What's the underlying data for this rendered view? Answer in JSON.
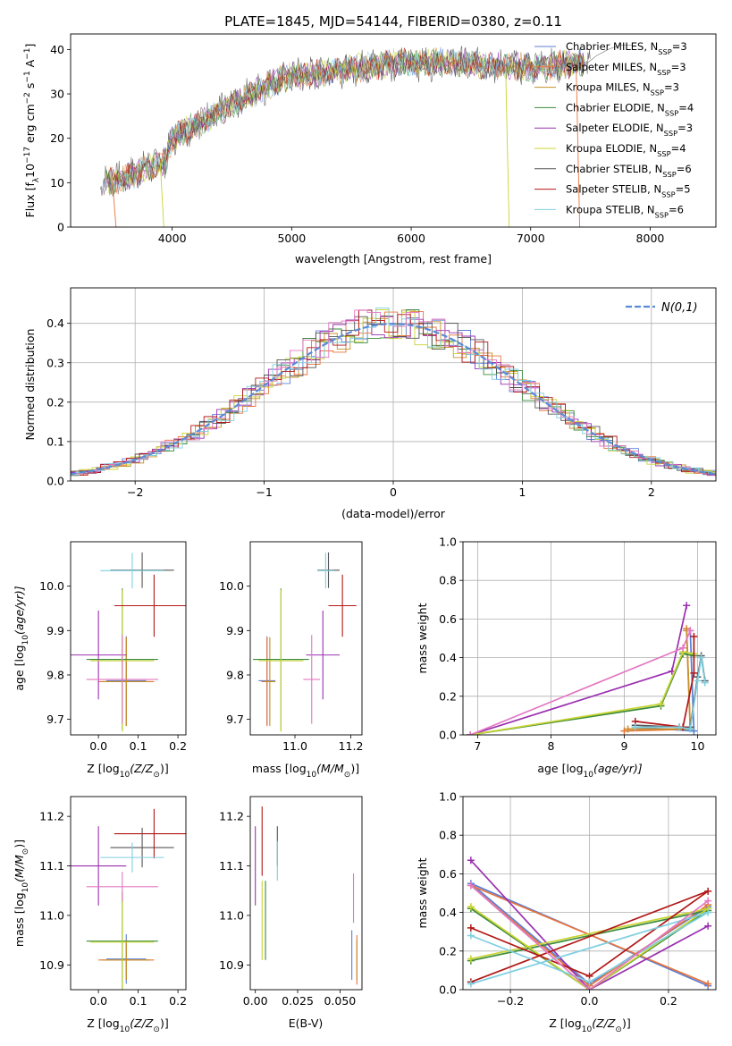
{
  "colors": {
    "chabrier_miles": "#5b7fd6",
    "salpeter_miles": "#e8743b",
    "kroupa_miles": "#c4912a",
    "chabrier_elodie": "#3a8a3a",
    "salpeter_elodie": "#9b30b0",
    "kroupa_elodie": "#c8d430",
    "chabrier_stelib": "#555555",
    "salpeter_stelib": "#b21818",
    "kroupa_stelib": "#7fcfe0",
    "pink": "#e377c2",
    "gaussian": "#5b8bd6",
    "grid": "#b0b0b0"
  },
  "chart_data": [
    {
      "id": "spectrum",
      "type": "line",
      "title": "PLATE=1845, MJD=54144, FIBERID=0380, z=0.11",
      "xlabel": "wavelength [Angstrom, rest frame]",
      "ylabel_main": "Flux [f",
      "ylabel_sub": "λ",
      "ylabel_mid": "10",
      "ylabel_sup1": "−17",
      "ylabel_tail": " erg cm",
      "ylabel_sup2": "−2",
      "ylabel_tail2": " s",
      "ylabel_sup3": "−1",
      "ylabel_tail3": " A",
      "ylabel_sup4": "−1",
      "ylabel_end": "]",
      "xlim": [
        3150,
        8550
      ],
      "ylim": [
        0,
        43.5
      ],
      "xticks": [
        4000,
        5000,
        6000,
        7000,
        8000
      ],
      "yticks": [
        0,
        10,
        20,
        30,
        40
      ],
      "grid": false,
      "legend_position": "right",
      "legend": [
        {
          "label": "Chabrier MILES, N",
          "sub": "SSP",
          "tail": "=3",
          "color": "chabrier_miles"
        },
        {
          "label": "Salpeter MILES, N",
          "sub": "SSP",
          "tail": "=3",
          "color": "salpeter_miles"
        },
        {
          "label": "Kroupa MILES, N",
          "sub": "SSP",
          "tail": "=3",
          "color": "kroupa_miles"
        },
        {
          "label": "Chabrier ELODIE, N",
          "sub": "SSP",
          "tail": "=4",
          "color": "chabrier_elodie"
        },
        {
          "label": "Salpeter ELODIE, N",
          "sub": "SSP",
          "tail": "=3",
          "color": "salpeter_elodie"
        },
        {
          "label": "Kroupa ELODIE, N",
          "sub": "SSP",
          "tail": "=4",
          "color": "kroupa_elodie"
        },
        {
          "label": "Chabrier STELIB, N",
          "sub": "SSP",
          "tail": "=6",
          "color": "chabrier_stelib"
        },
        {
          "label": "Salpeter STELIB, N",
          "sub": "SSP",
          "tail": "=5",
          "color": "salpeter_stelib"
        },
        {
          "label": "Kroupa STELIB, N",
          "sub": "SSP",
          "tail": "=6",
          "color": "kroupa_stelib"
        }
      ],
      "continuum": [
        [
          3400,
          9.8
        ],
        [
          3600,
          11
        ],
        [
          3800,
          13.5
        ],
        [
          3950,
          15
        ],
        [
          4000,
          20
        ],
        [
          4200,
          23
        ],
        [
          4400,
          26
        ],
        [
          4600,
          29
        ],
        [
          4800,
          32
        ],
        [
          5000,
          34
        ],
        [
          5200,
          34.5
        ],
        [
          5400,
          35.5
        ],
        [
          5600,
          36
        ],
        [
          5800,
          36.8
        ],
        [
          6000,
          37
        ],
        [
          6200,
          37.2
        ],
        [
          6400,
          37
        ],
        [
          6600,
          36.5
        ],
        [
          6800,
          36.2
        ],
        [
          7000,
          36
        ],
        [
          7200,
          36.5
        ],
        [
          7400,
          36.8
        ],
        [
          7500,
          37
        ]
      ],
      "model_end": [
        7450,
        37
      ],
      "model_tail": [
        [
          7450,
          37
        ],
        [
          7550,
          38
        ],
        [
          7650,
          39.5
        ],
        [
          7750,
          41
        ],
        [
          7850,
          40.5
        ]
      ],
      "drops": [
        {
          "color": "salpeter_miles",
          "x": 3500,
          "to_x": 3530
        },
        {
          "color": "kroupa_elodie",
          "x": 3900,
          "to_x": 3930
        },
        {
          "color": "kroupa_elodie",
          "x": 6790,
          "to_x": 6820
        },
        {
          "color": "salpeter_miles",
          "x": 7380,
          "to_x": 7410
        }
      ]
    },
    {
      "id": "residuals",
      "type": "histogram",
      "xlabel": "(data-model)/error",
      "ylabel": "Normed distribution",
      "xlim": [
        -2.5,
        2.5
      ],
      "ylim": [
        0,
        0.49
      ],
      "xticks": [
        -2,
        -1,
        0,
        1,
        2
      ],
      "yticks": [
        0.0,
        0.1,
        0.2,
        0.3,
        0.4
      ],
      "grid": true,
      "legend_position": "top-right",
      "gaussian_label": "N(0,1)",
      "bin_width": 0.1
    },
    {
      "id": "age_vs_Z",
      "type": "errorbar",
      "xlabel": "Z [log",
      "xlabel_sub": "10",
      "xlabel_tail": "(Z/Z",
      "xlabel_sub2": "⊙",
      "xlabel_end": ")]",
      "ylabel": "age  [log",
      "ylabel_sub": "10",
      "ylabel_tail": "(age/yr)]",
      "xlim": [
        -0.07,
        0.22
      ],
      "ylim": [
        9.665,
        10.1
      ],
      "xticks": [
        0.0,
        0.1,
        0.2
      ],
      "yticks": [
        9.7,
        9.8,
        9.9,
        10.0
      ],
      "points": [
        {
          "color": "chabrier_miles",
          "x": 0.07,
          "xerr": 0.05,
          "y": 9.787,
          "yerr": 0.1
        },
        {
          "color": "salpeter_miles",
          "x": 0.07,
          "xerr": 0.07,
          "y": 9.785,
          "yerr": 0.1
        },
        {
          "color": "kroupa_miles",
          "x": 0.07,
          "xerr": 0.06,
          "y": 9.785,
          "yerr": 0.1
        },
        {
          "color": "chabrier_elodie",
          "x": 0.06,
          "xerr": 0.09,
          "y": 9.835,
          "yerr": 0.16
        },
        {
          "color": "salpeter_elodie",
          "x": 0.0,
          "xerr": 0.07,
          "y": 9.845,
          "yerr": 0.1
        },
        {
          "color": "kroupa_elodie",
          "x": 0.06,
          "xerr": 0.08,
          "y": 9.832,
          "yerr": 0.16
        },
        {
          "color": "chabrier_stelib",
          "x": 0.11,
          "xerr": 0.08,
          "y": 10.036,
          "yerr": 0.04
        },
        {
          "color": "salpeter_stelib",
          "x": 0.14,
          "xerr": 0.1,
          "y": 9.956,
          "yerr": 0.07
        },
        {
          "color": "kroupa_stelib",
          "x": 0.085,
          "xerr": 0.08,
          "y": 10.035,
          "yerr": 0.04
        },
        {
          "color": "pink",
          "x": 0.06,
          "xerr": 0.09,
          "y": 9.79,
          "yerr": 0.1
        }
      ]
    },
    {
      "id": "age_vs_mass",
      "type": "errorbar",
      "xlabel": "mass [log",
      "xlabel_sub": "10",
      "xlabel_tail": "(M/M",
      "xlabel_sub2": "⊙",
      "xlabel_end": ")]",
      "xlim": [
        10.84,
        11.24
      ],
      "ylim": [
        9.665,
        10.1
      ],
      "xticks": [
        11.0,
        11.2
      ],
      "yticks": [
        9.7,
        9.8,
        9.9,
        10.0
      ],
      "points": [
        {
          "color": "chabrier_miles",
          "x": 10.9,
          "xerr": 0.03,
          "y": 9.787,
          "yerr": 0.1
        },
        {
          "color": "salpeter_miles",
          "x": 10.9,
          "xerr": 0.02,
          "y": 9.785,
          "yerr": 0.1
        },
        {
          "color": "kroupa_miles",
          "x": 10.91,
          "xerr": 0.02,
          "y": 9.785,
          "yerr": 0.1
        },
        {
          "color": "chabrier_elodie",
          "x": 10.95,
          "xerr": 0.1,
          "y": 9.835,
          "yerr": 0.16
        },
        {
          "color": "salpeter_elodie",
          "x": 11.1,
          "xerr": 0.06,
          "y": 9.845,
          "yerr": 0.1
        },
        {
          "color": "kroupa_elodie",
          "x": 10.95,
          "xerr": 0.08,
          "y": 9.832,
          "yerr": 0.16
        },
        {
          "color": "chabrier_stelib",
          "x": 11.12,
          "xerr": 0.04,
          "y": 10.036,
          "yerr": 0.04
        },
        {
          "color": "salpeter_stelib",
          "x": 11.17,
          "xerr": 0.05,
          "y": 9.956,
          "yerr": 0.07
        },
        {
          "color": "kroupa_stelib",
          "x": 11.11,
          "xerr": 0.03,
          "y": 10.035,
          "yerr": 0.04
        },
        {
          "color": "pink",
          "x": 11.06,
          "xerr": 0.03,
          "y": 9.79,
          "yerr": 0.1
        }
      ]
    },
    {
      "id": "mass_weight_vs_age",
      "type": "line",
      "xlabel": "age  [log",
      "xlabel_sub": "10",
      "xlabel_tail": "(age/yr)]",
      "ylabel": "mass weight",
      "xlim": [
        6.8,
        10.25
      ],
      "ylim": [
        0,
        1.0
      ],
      "xticks": [
        7,
        8,
        9,
        10
      ],
      "yticks": [
        0.0,
        0.2,
        0.4,
        0.6,
        0.8,
        1.0
      ],
      "grid": true,
      "series": [
        {
          "color": "chabrier_miles",
          "x": [
            9.15,
            9.95,
            9.9
          ],
          "y": [
            0.04,
            0.02,
            0.54
          ]
        },
        {
          "color": "salpeter_miles",
          "x": [
            9.0,
            9.9,
            9.85
          ],
          "y": [
            0.02,
            0.03,
            0.55
          ]
        },
        {
          "color": "kroupa_miles",
          "x": [
            9.05,
            9.9,
            9.85
          ],
          "y": [
            0.03,
            0.03,
            0.54
          ]
        },
        {
          "color": "chabrier_elodie",
          "x": [
            6.9,
            9.5,
            9.8,
            9.95
          ],
          "y": [
            0.0,
            0.15,
            0.42,
            0.41
          ]
        },
        {
          "color": "salpeter_elodie",
          "x": [
            6.9,
            9.65,
            9.85
          ],
          "y": [
            0.0,
            0.33,
            0.67
          ]
        },
        {
          "color": "kroupa_elodie",
          "x": [
            6.9,
            9.5,
            9.8,
            9.95
          ],
          "y": [
            0.0,
            0.16,
            0.43,
            0.42
          ]
        },
        {
          "color": "chabrier_stelib",
          "x": [
            9.15,
            9.75,
            9.9,
            10.0,
            10.05,
            10.1
          ],
          "y": [
            0.05,
            0.04,
            0.04,
            0.3,
            0.41,
            0.28
          ]
        },
        {
          "color": "salpeter_stelib",
          "x": [
            9.15,
            9.8,
            9.95,
            9.95
          ],
          "y": [
            0.07,
            0.04,
            0.32,
            0.51
          ]
        },
        {
          "color": "kroupa_stelib",
          "x": [
            9.15,
            9.75,
            9.9,
            10.0,
            10.05,
            10.1
          ],
          "y": [
            0.04,
            0.04,
            0.03,
            0.28,
            0.4,
            0.27
          ]
        },
        {
          "color": "pink",
          "x": [
            6.9,
            9.8,
            9.9
          ],
          "y": [
            0.0,
            0.45,
            0.54
          ]
        }
      ]
    },
    {
      "id": "mass_vs_Z",
      "type": "errorbar",
      "xlabel": "Z [log",
      "xlabel_sub": "10",
      "xlabel_tail": "(Z/Z",
      "xlabel_sub2": "⊙",
      "xlabel_end": ")]",
      "ylabel": "mass [log",
      "ylabel_sub": "10",
      "ylabel_tail": "(M/M",
      "ylabel_sub2": "⊙",
      "ylabel_end": ")]",
      "xlim": [
        -0.07,
        0.22
      ],
      "ylim": [
        10.85,
        11.24
      ],
      "xticks": [
        0.0,
        0.1,
        0.2
      ],
      "yticks": [
        10.9,
        11.0,
        11.1,
        11.2
      ],
      "points": [
        {
          "color": "chabrier_miles",
          "x": 0.07,
          "xerr": 0.05,
          "y": 10.912,
          "yerr": 0.05
        },
        {
          "color": "salpeter_miles",
          "x": 0.07,
          "xerr": 0.07,
          "y": 10.91,
          "yerr": 0.04
        },
        {
          "color": "kroupa_miles",
          "x": 0.07,
          "xerr": 0.06,
          "y": 10.91,
          "yerr": 0.04
        },
        {
          "color": "chabrier_elodie",
          "x": 0.06,
          "xerr": 0.09,
          "y": 10.948,
          "yerr": 0.1
        },
        {
          "color": "salpeter_elodie",
          "x": 0.0,
          "xerr": 0.07,
          "y": 11.1,
          "yerr": 0.08
        },
        {
          "color": "kroupa_elodie",
          "x": 0.06,
          "xerr": 0.08,
          "y": 10.946,
          "yerr": 0.1
        },
        {
          "color": "chabrier_stelib",
          "x": 0.11,
          "xerr": 0.08,
          "y": 11.137,
          "yerr": 0.04
        },
        {
          "color": "salpeter_stelib",
          "x": 0.14,
          "xerr": 0.1,
          "y": 11.165,
          "yerr": 0.05
        },
        {
          "color": "kroupa_stelib",
          "x": 0.085,
          "xerr": 0.08,
          "y": 11.117,
          "yerr": 0.03
        },
        {
          "color": "pink",
          "x": 0.06,
          "xerr": 0.09,
          "y": 11.058,
          "yerr": 0.03
        }
      ]
    },
    {
      "id": "mass_vs_ebv",
      "type": "errorbar",
      "xlabel": "E(B-V)",
      "xlim": [
        -0.003,
        0.063
      ],
      "ylim": [
        10.85,
        11.24
      ],
      "xticks": [
        0.0,
        0.025,
        0.05
      ],
      "yticks": [
        10.9,
        11.0,
        11.1,
        11.2
      ],
      "points": [
        {
          "color": "chabrier_miles",
          "x": 0.057,
          "xerr": 0,
          "y": 10.92,
          "yerr": 0.05
        },
        {
          "color": "salpeter_miles",
          "x": 0.06,
          "xerr": 0,
          "y": 10.91,
          "yerr": 0.05
        },
        {
          "color": "kroupa_miles",
          "x": 0.06,
          "xerr": 0,
          "y": 10.91,
          "yerr": 0.04
        },
        {
          "color": "chabrier_elodie",
          "x": 0.006,
          "xerr": 0,
          "y": 10.99,
          "yerr": 0.08
        },
        {
          "color": "salpeter_elodie",
          "x": 0.0,
          "xerr": 0,
          "y": 11.1,
          "yerr": 0.08
        },
        {
          "color": "kroupa_elodie",
          "x": 0.004,
          "xerr": 0,
          "y": 10.99,
          "yerr": 0.08
        },
        {
          "color": "chabrier_stelib",
          "x": 0.013,
          "xerr": 0,
          "y": 11.14,
          "yerr": 0.04
        },
        {
          "color": "salpeter_stelib",
          "x": 0.004,
          "xerr": 0,
          "y": 11.15,
          "yerr": 0.07
        },
        {
          "color": "kroupa_stelib",
          "x": 0.013,
          "xerr": 0,
          "y": 11.11,
          "yerr": 0.04
        },
        {
          "color": "pink",
          "x": 0.058,
          "xerr": 0,
          "y": 11.035,
          "yerr": 0.05
        }
      ]
    },
    {
      "id": "mass_weight_vs_Z",
      "type": "line",
      "xlabel": "Z [log",
      "xlabel_sub": "10",
      "xlabel_tail": "(Z/Z",
      "xlabel_sub2": "⊙",
      "xlabel_end": ")]",
      "ylabel": "mass weight",
      "xlim": [
        -0.32,
        0.32
      ],
      "ylim": [
        0,
        1.0
      ],
      "xticks": [
        -0.2,
        0.0,
        0.2
      ],
      "yticks": [
        0.0,
        0.2,
        0.4,
        0.6,
        0.8,
        1.0
      ],
      "grid": true,
      "series": [
        {
          "color": "chabrier_miles",
          "x": [
            0.3,
            -0.3,
            0.0,
            0.3
          ],
          "y": [
            0.02,
            0.55,
            0.03,
            0.43
          ]
        },
        {
          "color": "salpeter_miles",
          "x": [
            0.3,
            -0.3,
            0.0,
            0.3
          ],
          "y": [
            0.03,
            0.54,
            0.02,
            0.44
          ]
        },
        {
          "color": "chabrier_elodie",
          "x": [
            -0.3,
            0.0,
            0.3,
            -0.3
          ],
          "y": [
            0.42,
            0.0,
            0.41,
            0.15
          ]
        },
        {
          "color": "salpeter_elodie",
          "x": [
            -0.3,
            0.0,
            0.3
          ],
          "y": [
            0.67,
            0.0,
            0.33
          ]
        },
        {
          "color": "kroupa_elodie",
          "x": [
            -0.3,
            0.0,
            0.3,
            -0.3
          ],
          "y": [
            0.43,
            0.0,
            0.42,
            0.16
          ]
        },
        {
          "color": "salpeter_stelib",
          "x": [
            -0.3,
            0.0,
            0.3,
            -0.3
          ],
          "y": [
            0.32,
            0.07,
            0.51,
            0.04
          ]
        },
        {
          "color": "kroupa_stelib",
          "x": [
            -0.3,
            0.0,
            0.3,
            -0.3
          ],
          "y": [
            0.28,
            0.04,
            0.4,
            0.03
          ]
        },
        {
          "color": "pink",
          "x": [
            -0.3,
            0.0,
            0.3
          ],
          "y": [
            0.54,
            0.0,
            0.46
          ]
        }
      ]
    }
  ]
}
